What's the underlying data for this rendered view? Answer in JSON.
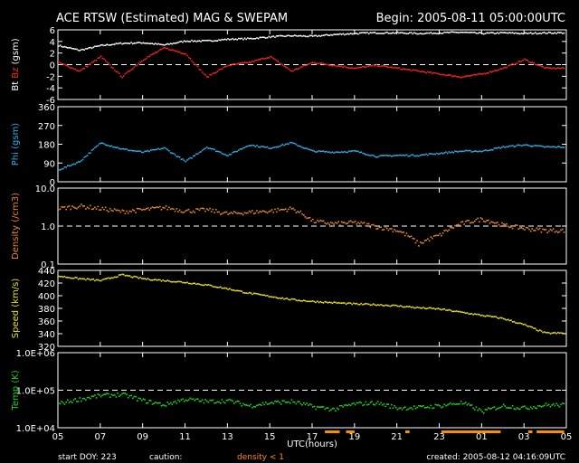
{
  "header": {
    "title": "ACE RTSW (Estimated) MAG & SWEPAM",
    "begin": "Begin: 2005-08-11 05:00:00UTC"
  },
  "footer": {
    "start_doy": "start DOY: 223",
    "caution": "caution:",
    "density_note": "density < 1",
    "created": "created: 2005-08-12 04:16:09UTC",
    "xlabel": "UTC(hours)"
  },
  "colors": {
    "background": "#000000",
    "axes": "#ffffff",
    "bt": "#ffffff",
    "bz": "#ff2020",
    "phi": "#2ab0e8",
    "density": "#e8862a",
    "speed": "#e8e020",
    "temp": "#20d020",
    "caution": "#ff8c00"
  },
  "chart_data": [
    {
      "type": "scatter",
      "panel": "mag",
      "ylabel_parts": [
        "Bt",
        "Bz",
        "(gsm)"
      ],
      "ylim": [
        -6,
        6
      ],
      "yticks": [
        "6",
        "4",
        "2",
        "0",
        "-2",
        "-4",
        "-6"
      ],
      "reference_line": 0,
      "x_hours": [
        0,
        1,
        2,
        3,
        4,
        5,
        6,
        7,
        8,
        9,
        10,
        11,
        12,
        13,
        14,
        15,
        16,
        17,
        18,
        19,
        20,
        21,
        22,
        23
      ],
      "series": [
        {
          "name": "Bt",
          "values": [
            3.4,
            2.6,
            3.4,
            3.8,
            3.9,
            3.5,
            4.2,
            4.2,
            4.5,
            4.6,
            4.9,
            5.1,
            5.0,
            5.3,
            5.5,
            5.6,
            5.6,
            5.5,
            5.6,
            5.7,
            5.5,
            5.6,
            5.5,
            5.6
          ]
        },
        {
          "name": "Bz",
          "values": [
            0.5,
            -1.0,
            1.5,
            -2.0,
            1.0,
            3.0,
            2.0,
            -2.0,
            0.0,
            0.5,
            1.5,
            -1.0,
            0.5,
            0.0,
            -0.5,
            0.0,
            -0.5,
            -1.0,
            -1.5,
            -2.0,
            -1.5,
            -0.5,
            1.0,
            -0.5
          ]
        }
      ]
    },
    {
      "type": "scatter",
      "panel": "phi",
      "ylabel": "Phi (gsm)",
      "ylim": [
        0,
        360
      ],
      "yticks": [
        "360",
        "270",
        "180",
        "90",
        "0"
      ],
      "x_hours": [
        0,
        1,
        2,
        3,
        4,
        5,
        6,
        7,
        8,
        9,
        10,
        11,
        12,
        13,
        14,
        15,
        16,
        17,
        18,
        19,
        20,
        21,
        22,
        23
      ],
      "series": [
        {
          "name": "Phi",
          "values": [
            60,
            100,
            190,
            160,
            145,
            165,
            100,
            170,
            130,
            180,
            165,
            190,
            150,
            145,
            150,
            125,
            130,
            130,
            140,
            150,
            150,
            170,
            180,
            170
          ]
        }
      ]
    },
    {
      "type": "scatter",
      "panel": "density",
      "ylabel": "Density (/cm3)",
      "scale": "log",
      "ylim": [
        0.1,
        10
      ],
      "yticks": [
        "10.0",
        "1.0",
        "0.1"
      ],
      "reference_line": 1.0,
      "x_hours": [
        0,
        1,
        2,
        3,
        4,
        5,
        6,
        7,
        8,
        9,
        10,
        11,
        12,
        13,
        14,
        15,
        16,
        17,
        18,
        19,
        20,
        21,
        22,
        23
      ],
      "series": [
        {
          "name": "Density",
          "values": [
            3.0,
            3.5,
            3.0,
            2.5,
            2.8,
            3.2,
            2.6,
            2.8,
            2.2,
            2.4,
            2.6,
            3.0,
            1.4,
            1.2,
            1.3,
            1.0,
            0.8,
            0.35,
            0.6,
            1.2,
            1.6,
            1.1,
            0.9,
            0.8
          ]
        }
      ]
    },
    {
      "type": "scatter",
      "panel": "speed",
      "ylabel": "Speed (km/s)",
      "ylim": [
        320,
        440
      ],
      "yticks": [
        "440",
        "420",
        "400",
        "380",
        "360",
        "340",
        "320"
      ],
      "x_hours": [
        0,
        1,
        2,
        3,
        4,
        5,
        6,
        7,
        8,
        9,
        10,
        11,
        12,
        13,
        14,
        15,
        16,
        17,
        18,
        19,
        20,
        21,
        22,
        23
      ],
      "series": [
        {
          "name": "Speed",
          "values": [
            432,
            428,
            425,
            434,
            428,
            425,
            422,
            418,
            412,
            405,
            400,
            395,
            392,
            390,
            388,
            387,
            385,
            382,
            380,
            375,
            370,
            365,
            355,
            342
          ]
        }
      ]
    },
    {
      "type": "scatter",
      "panel": "temp",
      "ylabel": "Temp (K)",
      "scale": "log",
      "ylim": [
        10000,
        1000000
      ],
      "yticks": [
        "1.0E+06",
        "1.0E+05",
        "1.0E+04"
      ],
      "reference_line": 100000,
      "x_hours": [
        0,
        1,
        2,
        3,
        4,
        5,
        6,
        7,
        8,
        9,
        10,
        11,
        12,
        13,
        14,
        15,
        16,
        17,
        18,
        19,
        20,
        21,
        22,
        23
      ],
      "series": [
        {
          "name": "Temp",
          "values": [
            45000,
            60000,
            75000,
            80000,
            55000,
            42000,
            60000,
            52000,
            55000,
            40000,
            48000,
            52000,
            38000,
            32000,
            45000,
            48000,
            35000,
            36000,
            40000,
            48000,
            28000,
            40000,
            35000,
            42000
          ]
        }
      ]
    }
  ],
  "xaxis": {
    "ticks": [
      "05",
      "07",
      "09",
      "11",
      "13",
      "15",
      "17",
      "19",
      "21",
      "23",
      "01",
      "03",
      "05"
    ]
  },
  "caution_intervals_hours": [
    [
      12.6,
      13.3
    ],
    [
      13.6,
      14.0
    ],
    [
      16.4,
      16.6
    ],
    [
      18.1,
      20.9
    ],
    [
      22.2,
      22.4
    ],
    [
      22.6,
      23.9
    ]
  ]
}
